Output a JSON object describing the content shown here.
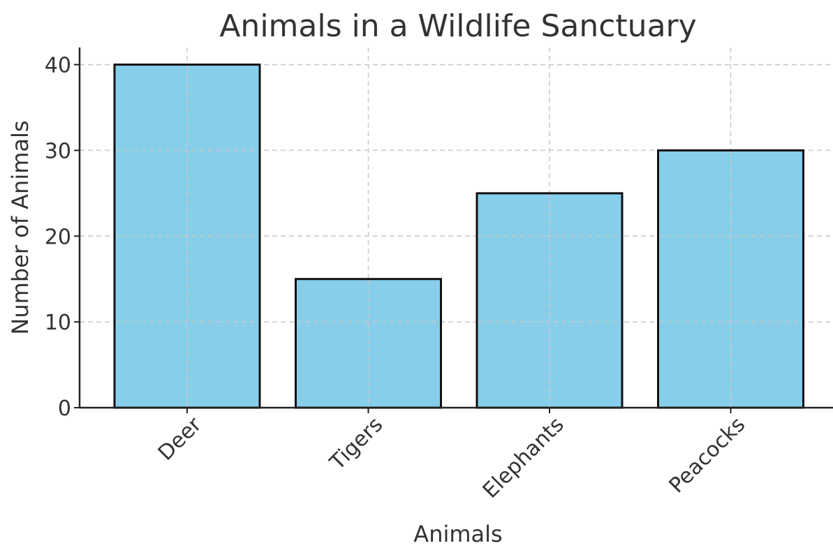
{
  "chart_data": {
    "type": "bar",
    "title": "Animals in a Wildlife Sanctuary",
    "xlabel": "Animals",
    "ylabel": "Number of Animals",
    "categories": [
      "Deer",
      "Tigers",
      "Elephants",
      "Peacocks"
    ],
    "values": [
      40,
      15,
      25,
      30
    ],
    "ylim": [
      0,
      42
    ],
    "yticks": [
      0,
      10,
      20,
      30,
      40
    ],
    "grid": true,
    "colors": {
      "bar_fill": "#87CEEB",
      "bar_edge": "#111111",
      "text": "#333333"
    }
  }
}
